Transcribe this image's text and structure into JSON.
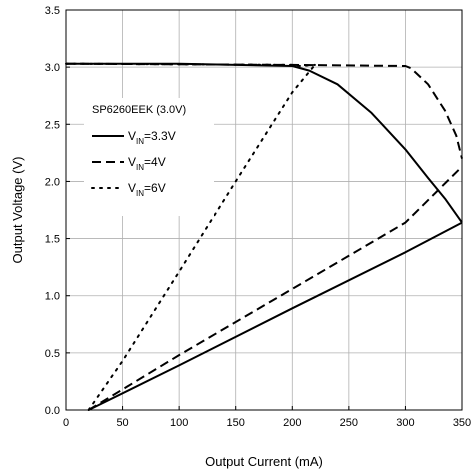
{
  "chart_data": {
    "type": "line",
    "title": "",
    "xlabel": "Output Current (mA)",
    "ylabel": "Output Voltage (V)",
    "xlim": [
      0,
      350
    ],
    "ylim": [
      0,
      3.5
    ],
    "x_ticks": [
      "0",
      "50",
      "100",
      "150",
      "200",
      "250",
      "300",
      "350"
    ],
    "y_ticks": [
      "0.0",
      "0.5",
      "1.0",
      "1.5",
      "2.0",
      "2.5",
      "3.0",
      "3.5"
    ],
    "grid": true,
    "legend": {
      "title": "SP6260EEK  (3.0V)",
      "placement": "left, inside plot",
      "entries": [
        {
          "prefix": "V",
          "subscript": "IN",
          "suffix": "=3.3V",
          "style": "solid"
        },
        {
          "prefix": "V",
          "subscript": "IN",
          "suffix": "=4V",
          "style": "dashed"
        },
        {
          "prefix": "V",
          "subscript": "IN",
          "suffix": "=6V",
          "style": "dotted"
        }
      ]
    },
    "series": [
      {
        "style": "solid",
        "upper": {
          "x": [
            0,
            100,
            200,
            215,
            240,
            270,
            300,
            320,
            335,
            350
          ],
          "y": [
            3.03,
            3.03,
            3.01,
            2.97,
            2.85,
            2.6,
            2.28,
            2.03,
            1.85,
            1.64
          ]
        },
        "lower": {
          "x": [
            20,
            100,
            200,
            300,
            350
          ],
          "y": [
            0.0,
            0.39,
            0.89,
            1.38,
            1.64
          ]
        }
      },
      {
        "style": "dashed",
        "upper": {
          "x": [
            0,
            200,
            300,
            305,
            320,
            335,
            345,
            350
          ],
          "y": [
            3.03,
            3.02,
            3.01,
            2.99,
            2.85,
            2.62,
            2.4,
            2.2
          ]
        },
        "lower": {
          "x": [
            20,
            100,
            200,
            300,
            350
          ],
          "y": [
            0.0,
            0.48,
            1.06,
            1.64,
            2.13
          ]
        }
      },
      {
        "style": "dotted",
        "upper": {
          "x": [
            0,
            200,
            207,
            220
          ],
          "y": [
            3.03,
            3.02,
            3.01,
            3.02
          ]
        },
        "lower": {
          "x": [
            20,
            50,
            100,
            150,
            200,
            220
          ],
          "y": [
            0.0,
            0.43,
            1.21,
            2.0,
            2.78,
            3.02
          ]
        }
      }
    ]
  }
}
